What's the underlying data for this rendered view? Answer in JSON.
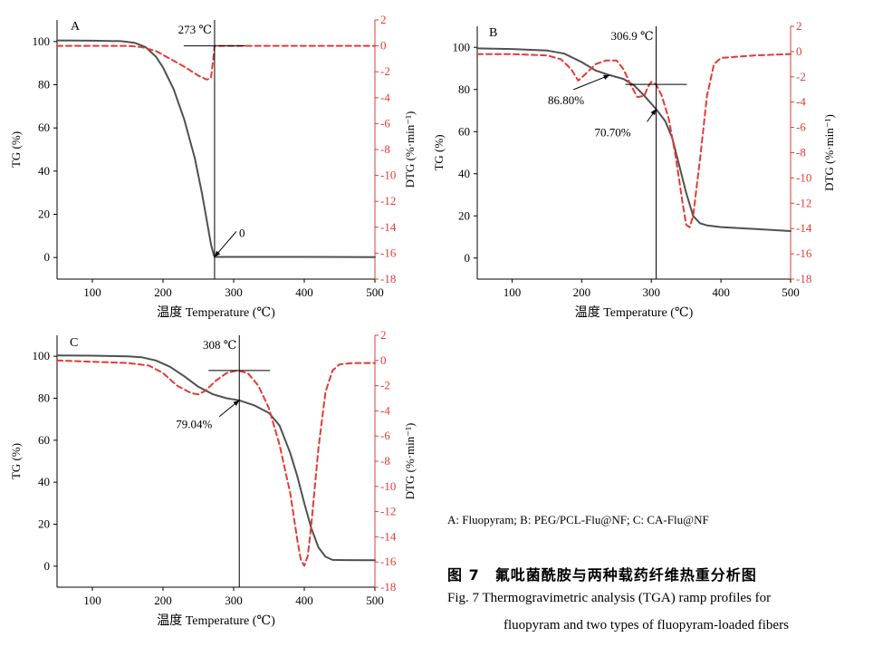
{
  "chart_data": [
    {
      "type": "line",
      "panel_label": "A",
      "xlabel": "温度 Temperature (℃)",
      "ylabel_left": "TG (%)",
      "ylabel_right": "DTG (%·min⁻¹)",
      "xlim": [
        50,
        500
      ],
      "ylim_left": [
        -10,
        110
      ],
      "ylim_right": [
        -18,
        2
      ],
      "x_ticks": [
        100,
        200,
        300,
        400,
        500
      ],
      "y_ticks_left": [
        0,
        20,
        40,
        60,
        80,
        100
      ],
      "y_ticks_right": [
        2,
        0,
        -2,
        -4,
        -6,
        -8,
        -10,
        -12,
        -14,
        -16,
        -18
      ],
      "series": [
        {
          "name": "TG",
          "axis": "left",
          "color": "#505050",
          "style": "solid",
          "x": [
            50,
            100,
            140,
            160,
            175,
            190,
            200,
            215,
            230,
            245,
            255,
            262,
            268,
            272,
            273,
            300,
            400,
            500
          ],
          "y": [
            100.5,
            100.4,
            100.2,
            99.4,
            97.5,
            93,
            88,
            78,
            64,
            46,
            30,
            17,
            6,
            1,
            0.3,
            0.3,
            0.3,
            0.2
          ]
        },
        {
          "name": "DTG",
          "axis": "right",
          "color": "#e53935",
          "style": "dashed",
          "x": [
            50,
            100,
            150,
            170,
            190,
            210,
            230,
            250,
            262,
            268,
            270,
            272,
            273,
            274,
            280,
            300,
            400,
            500
          ],
          "y": [
            0,
            0,
            0,
            -0.1,
            -0.4,
            -1.0,
            -1.6,
            -2.3,
            -2.6,
            -2.5,
            -1.5,
            -0.6,
            0,
            0,
            0,
            0,
            0,
            0
          ]
        }
      ],
      "annotations": [
        {
          "text": "273 ℃",
          "x": 273,
          "kind": "vline"
        },
        {
          "text": "0",
          "x": 273,
          "y": 0.3,
          "kind": "arrow"
        }
      ]
    },
    {
      "type": "line",
      "panel_label": "B",
      "xlabel": "温度 Temperature (℃)",
      "ylabel_left": "TG (%)",
      "ylabel_right": "DTG (%·min⁻¹)",
      "xlim": [
        50,
        500
      ],
      "ylim_left": [
        -10,
        110
      ],
      "ylim_right": [
        -18,
        2
      ],
      "x_ticks": [
        100,
        200,
        300,
        400,
        500
      ],
      "y_ticks_left": [
        0,
        20,
        40,
        60,
        80,
        100
      ],
      "y_ticks_right": [
        2,
        0,
        -2,
        -4,
        -6,
        -8,
        -10,
        -12,
        -14,
        -16,
        -18
      ],
      "series": [
        {
          "name": "TG",
          "axis": "left",
          "color": "#505050",
          "style": "solid",
          "x": [
            50,
            100,
            150,
            175,
            200,
            220,
            240,
            260,
            275,
            290,
            306.9,
            320,
            330,
            340,
            350,
            360,
            370,
            380,
            400,
            450,
            500
          ],
          "y": [
            99.5,
            99.2,
            98.5,
            97,
            93,
            89,
            86.8,
            85,
            82,
            77,
            70.7,
            65,
            57,
            44,
            31,
            20,
            16.5,
            15.5,
            14.7,
            13.8,
            12.8
          ]
        },
        {
          "name": "DTG",
          "axis": "right",
          "color": "#e53935",
          "style": "dashed",
          "x": [
            50,
            100,
            150,
            170,
            185,
            195,
            205,
            220,
            235,
            250,
            260,
            270,
            280,
            290,
            295,
            300,
            306.9,
            315,
            325,
            335,
            345,
            350,
            355,
            360,
            370,
            380,
            390,
            400,
            450,
            500
          ],
          "y": [
            -0.2,
            -0.2,
            -0.3,
            -0.6,
            -1.4,
            -2.3,
            -1.8,
            -1.0,
            -0.7,
            -0.7,
            -1.4,
            -2.6,
            -3.6,
            -3.5,
            -2.8,
            -2.4,
            -2.6,
            -3.5,
            -5.3,
            -8.3,
            -12,
            -13.7,
            -13.9,
            -13,
            -8.5,
            -3.5,
            -1,
            -0.5,
            -0.3,
            -0.2
          ]
        }
      ],
      "annotations": [
        {
          "text": "306.9 ℃",
          "x": 306.9,
          "kind": "vline"
        },
        {
          "text": "86.80%",
          "x": 240,
          "y": 86.8,
          "kind": "arrow"
        },
        {
          "text": "70.70%",
          "x": 306.9,
          "y": 70.7,
          "kind": "arrow"
        }
      ]
    },
    {
      "type": "line",
      "panel_label": "C",
      "xlabel": "温度 Temperature (℃)",
      "ylabel_left": "TG (%)",
      "ylabel_right": "DTG (%·min⁻¹)",
      "xlim": [
        50,
        500
      ],
      "ylim_left": [
        -10,
        110
      ],
      "ylim_right": [
        -18,
        2
      ],
      "x_ticks": [
        100,
        200,
        300,
        400,
        500
      ],
      "y_ticks_left": [
        0,
        20,
        40,
        60,
        80,
        100
      ],
      "y_ticks_right": [
        2,
        0,
        -2,
        -4,
        -6,
        -8,
        -10,
        -12,
        -14,
        -16,
        -18
      ],
      "series": [
        {
          "name": "TG",
          "axis": "left",
          "color": "#505050",
          "style": "solid",
          "x": [
            50,
            100,
            150,
            170,
            190,
            210,
            230,
            250,
            270,
            290,
            308,
            330,
            350,
            365,
            380,
            390,
            400,
            410,
            420,
            430,
            440,
            460,
            500
          ],
          "y": [
            100.4,
            100.3,
            100,
            99.5,
            98,
            95,
            90.5,
            85.5,
            82,
            80,
            79,
            76.5,
            73,
            67,
            54,
            43,
            30,
            18,
            9,
            4.5,
            3,
            2.9,
            2.8
          ]
        },
        {
          "name": "DTG",
          "axis": "right",
          "color": "#e53935",
          "style": "dashed",
          "x": [
            50,
            100,
            150,
            180,
            200,
            220,
            240,
            250,
            260,
            275,
            290,
            305,
            320,
            335,
            350,
            365,
            380,
            390,
            395,
            400,
            405,
            410,
            420,
            430,
            440,
            450,
            470,
            500
          ],
          "y": [
            0,
            -0.1,
            -0.2,
            -0.4,
            -1.0,
            -2.0,
            -2.6,
            -2.7,
            -2.4,
            -1.6,
            -1.0,
            -0.8,
            -1.0,
            -2.0,
            -3.8,
            -6.7,
            -10.5,
            -14.2,
            -15.8,
            -16.3,
            -15.5,
            -13,
            -7,
            -2.5,
            -0.8,
            -0.3,
            -0.2,
            -0.2
          ]
        }
      ],
      "annotations": [
        {
          "text": "308 ℃",
          "x": 308,
          "kind": "vline"
        },
        {
          "text": "79.04%",
          "x": 308,
          "y": 79.04,
          "kind": "arrow"
        }
      ]
    }
  ],
  "legend_note": "A: Fluopyram; B: PEG/PCL-Flu@NF; C: CA-Flu@NF",
  "caption_cn": "图 7　氟吡菌酰胺与两种载药纤维热重分析图",
  "caption_en_line1": "Fig. 7   Thermogravimetric analysis (TGA) ramp profiles for",
  "caption_en_line2": "fluopyram and two types of fluopyram-loaded fibers",
  "colors": {
    "tg_line": "#505050",
    "dtg_line": "#e53935",
    "dtg_axis": "#e53935",
    "axis": "#000000"
  }
}
